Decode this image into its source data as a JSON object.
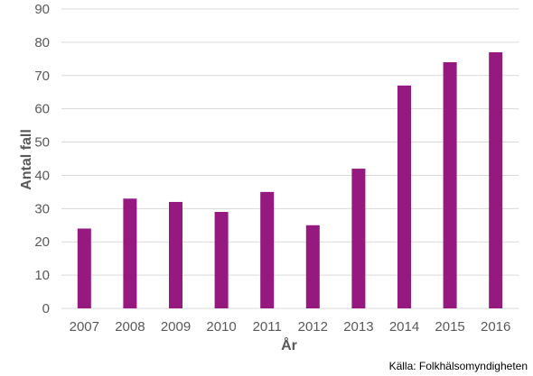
{
  "chart_data": {
    "type": "bar",
    "categories": [
      "2007",
      "2008",
      "2009",
      "2010",
      "2011",
      "2012",
      "2013",
      "2014",
      "2015",
      "2016"
    ],
    "values": [
      24,
      33,
      32,
      29,
      35,
      25,
      42,
      67,
      74,
      77
    ],
    "xlabel": "År",
    "ylabel": "Antal fall",
    "ylim": [
      0,
      90
    ],
    "yticks": [
      0,
      10,
      20,
      30,
      40,
      50,
      60,
      70,
      80,
      90
    ],
    "grid": true,
    "legend": "none",
    "bar_color": "#96197F",
    "grid_color": "#D9D9D9",
    "source": "Källa: Folkhälsomyndigheten"
  }
}
